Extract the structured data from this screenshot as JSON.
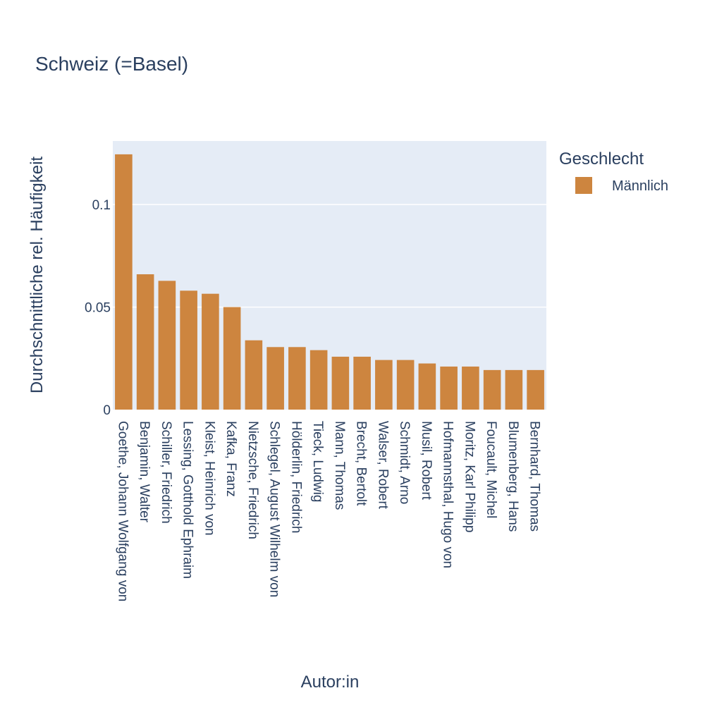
{
  "chart_data": {
    "type": "bar",
    "title": "Schweiz (=Basel)",
    "xlabel": "Autor:in",
    "ylabel": "Durchschnittliche rel. Häufigkeit",
    "ylim": [
      0,
      0.131
    ],
    "yticks": [
      0,
      0.05,
      0.1
    ],
    "ytick_labels": [
      "0",
      "0.05",
      "0.1"
    ],
    "grid": true,
    "legend": {
      "title": "Geschlecht",
      "placement": "top-right"
    },
    "categories": [
      "Goethe, Johann Wolfgang von",
      "Benjamin, Walter",
      "Schiller, Friedrich",
      "Lessing, Gotthold Ephraim",
      "Kleist, Heinrich von",
      "Kafka, Franz",
      "Nietzsche, Friedrich",
      "Schlegel, August Wilhelm von",
      "Hölderlin, Friedrich",
      "Tieck, Ludwig",
      "Mann, Thomas",
      "Brecht, Bertolt",
      "Walser, Robert",
      "Schmidt, Arno",
      "Musil, Robert",
      "Hofmannsthal, Hugo von",
      "Moritz, Karl Philipp",
      "Foucault, Michel",
      "Blumenberg, Hans",
      "Bernhard, Thomas"
    ],
    "series": [
      {
        "name": "Männlich",
        "color": "#cd853f",
        "values": [
          0.1245,
          0.066,
          0.0628,
          0.058,
          0.0565,
          0.05,
          0.0338,
          0.0305,
          0.0305,
          0.029,
          0.0258,
          0.0258,
          0.0242,
          0.0242,
          0.0225,
          0.021,
          0.021,
          0.0193,
          0.0193,
          0.0193
        ]
      }
    ]
  },
  "colors": {
    "plot_background": "#e5ecf6",
    "grid": "#ffffff",
    "text": "#2a3f5f",
    "bar": "#cd853f"
  }
}
